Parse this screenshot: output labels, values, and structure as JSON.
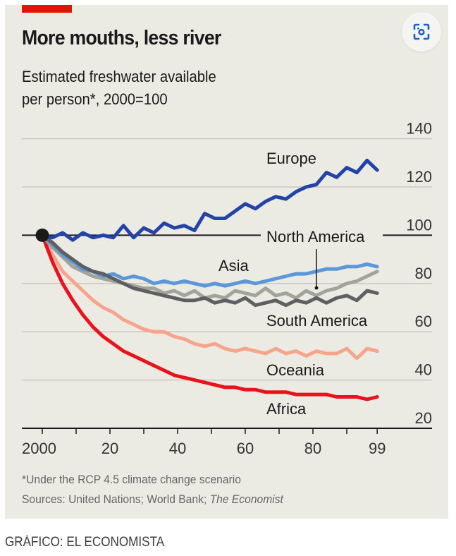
{
  "header": {
    "title": "More mouths, less river",
    "subtitle_line1": "Estimated freshwater available",
    "subtitle_line2": "per person*, 2000=100"
  },
  "lens_button": {
    "icon": "visual-search-icon"
  },
  "footnote": "*Under the RCP 4.5 climate change scenario",
  "sources_prefix": "Sources: United Nations; World Bank; ",
  "sources_italic": "The Economist",
  "credit": "GRÁFICO: EL ECONOMISTA",
  "colors": {
    "background": "#ecebe3",
    "accent_red_bar": "#e3120b",
    "Europe": "#2343a8",
    "Asia": "#5b97d9",
    "North America": "#a3a39a",
    "South America": "#5e5f62",
    "Oceania": "#f6a58c",
    "Africa": "#e8141b"
  },
  "chart_data": {
    "type": "line",
    "title": "More mouths, less river",
    "subtitle": "Estimated freshwater available per person*, 2000=100",
    "xlabel": "",
    "ylabel": "",
    "x_range": [
      2000,
      2099
    ],
    "ylim": [
      20,
      140
    ],
    "y_ticks": [
      20,
      40,
      60,
      80,
      100,
      120,
      140
    ],
    "x_ticks": [
      2000,
      2010,
      2020,
      2030,
      2040,
      2050,
      2060,
      2070,
      2080,
      2090,
      2099
    ],
    "x_tick_labels": [
      {
        "year": 2000,
        "label": "2000"
      },
      {
        "year": 2020,
        "label": "20"
      },
      {
        "year": 2040,
        "label": "40"
      },
      {
        "year": 2060,
        "label": "60"
      },
      {
        "year": 2080,
        "label": "80"
      },
      {
        "year": 2099,
        "label": "99"
      }
    ],
    "grid": true,
    "reference_line": 100,
    "origin_marker": {
      "x": 2000,
      "y": 100
    },
    "x": [
      2000,
      2003,
      2006,
      2009,
      2012,
      2015,
      2018,
      2021,
      2024,
      2027,
      2030,
      2033,
      2036,
      2039,
      2042,
      2045,
      2048,
      2051,
      2054,
      2057,
      2060,
      2063,
      2066,
      2069,
      2072,
      2075,
      2078,
      2081,
      2084,
      2087,
      2090,
      2093,
      2096,
      2099
    ],
    "series": [
      {
        "name": "Europe",
        "values": [
          100,
          99,
          101,
          98,
          101,
          99,
          100,
          99,
          104,
          99,
          103,
          101,
          105,
          103,
          104,
          102,
          109,
          107,
          107,
          110,
          113,
          111,
          114,
          116,
          115,
          118,
          120,
          121,
          126,
          124,
          128,
          126,
          131,
          127
        ]
      },
      {
        "name": "Asia",
        "values": [
          100,
          96,
          92,
          89,
          86,
          85,
          83,
          84,
          82,
          83,
          82,
          80,
          81,
          80,
          81,
          80,
          79,
          80,
          79,
          80,
          81,
          80,
          81,
          82,
          83,
          84,
          84,
          85,
          86,
          86,
          87,
          87,
          88,
          87
        ]
      },
      {
        "name": "North America",
        "values": [
          100,
          95,
          91,
          87,
          85,
          83,
          82,
          81,
          80,
          79,
          78,
          78,
          76,
          77,
          75,
          77,
          74,
          75,
          74,
          77,
          76,
          75,
          78,
          75,
          76,
          74,
          77,
          75,
          77,
          78,
          80,
          81,
          83,
          85
        ]
      },
      {
        "name": "South America",
        "values": [
          100,
          97,
          93,
          90,
          87,
          85,
          84,
          82,
          80,
          78,
          77,
          76,
          75,
          74,
          73,
          73,
          74,
          72,
          73,
          72,
          74,
          71,
          72,
          73,
          71,
          73,
          72,
          74,
          72,
          74,
          75,
          73,
          77,
          76
        ]
      },
      {
        "name": "Oceania",
        "values": [
          100,
          92,
          85,
          81,
          77,
          73,
          70,
          68,
          65,
          63,
          61,
          60,
          60,
          58,
          57,
          55,
          54,
          55,
          53,
          52,
          53,
          52,
          51,
          53,
          51,
          52,
          50,
          52,
          51,
          51,
          53,
          49,
          53,
          52
        ]
      },
      {
        "name": "Africa",
        "values": [
          100,
          89,
          80,
          73,
          67,
          62,
          58,
          55,
          52,
          50,
          48,
          46,
          44,
          42,
          41,
          40,
          39,
          38,
          37,
          37,
          36,
          36,
          35,
          35,
          35,
          34,
          34,
          34,
          34,
          33,
          33,
          33,
          32,
          33
        ]
      }
    ],
    "series_labels": [
      {
        "name": "Europe",
        "label": "Europe"
      },
      {
        "name": "North America",
        "label": "North America"
      },
      {
        "name": "Asia",
        "label": "Asia"
      },
      {
        "name": "South America",
        "label": "South America"
      },
      {
        "name": "Oceania",
        "label": "Oceania"
      },
      {
        "name": "Africa",
        "label": "Africa"
      }
    ]
  }
}
